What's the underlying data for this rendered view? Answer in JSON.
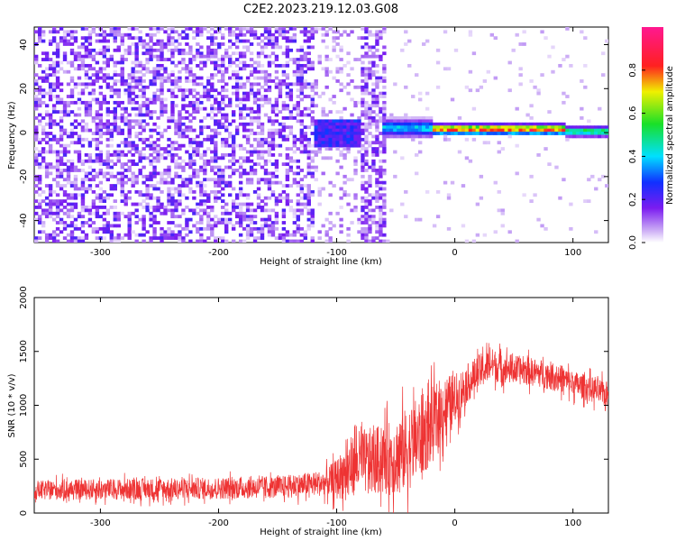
{
  "title": "C2E2.2023.219.12.03.G08",
  "chart_data": [
    {
      "type": "heatmap",
      "xlabel": "Height of straight line (km)",
      "ylabel": "Frequency (Hz)",
      "xlim": [
        -356,
        130
      ],
      "ylim": [
        -50,
        48
      ],
      "x_ticks": [
        -300,
        -200,
        -100,
        0,
        100
      ],
      "y_ticks": [
        -40,
        -20,
        0,
        20,
        40
      ],
      "x_tick_labels": [
        "-300",
        "-200",
        "-100",
        "0",
        "100"
      ],
      "y_tick_labels": [
        "-40",
        "-20",
        "0",
        "20",
        "40"
      ],
      "colorbar": {
        "label": "Normalized spectral amplitude",
        "range": [
          0,
          1
        ],
        "ticks": [
          0.0,
          0.2,
          0.4,
          0.6,
          0.8
        ],
        "tick_labels": [
          "0.0",
          "0.2",
          "0.4",
          "0.6",
          "0.8"
        ],
        "colormap": "white-purple-blue-cyan-green-yellow-red-magenta"
      },
      "features": [
        {
          "x_range": [
            -356,
            -120
          ],
          "description_level": "diffuse noise",
          "amplitude": 0.15
        },
        {
          "x_range": [
            -60,
            -20
          ],
          "center_hz": 2,
          "width_hz": 5,
          "amplitude": 0.45
        },
        {
          "x_range": [
            -20,
            95
          ],
          "center_hz": 1.5,
          "width_hz": 3,
          "amplitude": 0.95
        },
        {
          "x_range": [
            95,
            130
          ],
          "center_hz": 0.5,
          "width_hz": 3,
          "amplitude": 0.6
        }
      ]
    },
    {
      "type": "line",
      "xlabel": "Height of straight line (km)",
      "ylabel": "SNR (10 * v/v)",
      "xlim": [
        -356,
        130
      ],
      "ylim": [
        0,
        2000
      ],
      "x_ticks": [
        -300,
        -200,
        -100,
        0,
        100
      ],
      "y_ticks": [
        0,
        500,
        1000,
        1500,
        2000
      ],
      "x_tick_labels": [
        "-300",
        "-200",
        "-100",
        "0",
        "100"
      ],
      "y_tick_labels": [
        "0",
        "500",
        "1000",
        "1500",
        "2000"
      ],
      "color": "#ee3333",
      "envelope": {
        "x": [
          -356,
          -300,
          -200,
          -150,
          -110,
          -100,
          -90,
          -80,
          -70,
          -60,
          -50,
          -40,
          -30,
          -20,
          -10,
          0,
          10,
          20,
          30,
          40,
          50,
          60,
          70,
          80,
          90,
          100,
          110,
          120,
          130
        ],
        "mean": [
          210,
          220,
          230,
          240,
          280,
          310,
          420,
          480,
          480,
          500,
          520,
          600,
          700,
          800,
          950,
          1050,
          1200,
          1300,
          1380,
          1350,
          1330,
          1320,
          1300,
          1280,
          1250,
          1200,
          1170,
          1130,
          1100
        ],
        "spread": [
          150,
          160,
          170,
          170,
          200,
          320,
          450,
          500,
          520,
          550,
          600,
          650,
          650,
          600,
          550,
          400,
          300,
          280,
          260,
          240,
          230,
          220,
          220,
          220,
          210,
          200,
          200,
          200,
          200
        ]
      }
    }
  ]
}
